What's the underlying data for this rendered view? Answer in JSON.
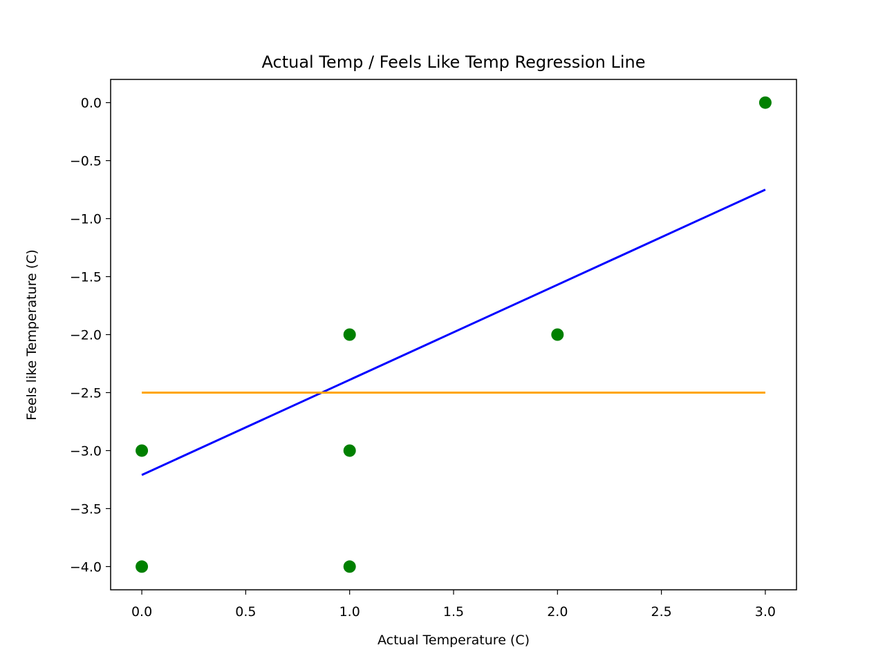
{
  "chart_data": {
    "type": "scatter",
    "title": "Actual Temp / Feels Like Temp Regression Line",
    "xlabel": "Actual Temperature (C)",
    "ylabel": "Feels like Temperature (C)",
    "xlim": [
      -0.15,
      3.15
    ],
    "ylim": [
      -4.2,
      0.2
    ],
    "xticks": [
      0.0,
      0.5,
      1.0,
      1.5,
      2.0,
      2.5,
      3.0
    ],
    "xtick_labels": [
      "0.0",
      "0.5",
      "1.0",
      "1.5",
      "2.0",
      "2.5",
      "3.0"
    ],
    "yticks": [
      0.0,
      -0.5,
      -1.0,
      -1.5,
      -2.0,
      -2.5,
      -3.0,
      -3.5,
      -4.0
    ],
    "ytick_labels": [
      "0.0",
      "−0.5",
      "−1.0",
      "−1.5",
      "−2.0",
      "−2.5",
      "−3.0",
      "−3.5",
      "−4.0"
    ],
    "grid": false,
    "points": {
      "color": "#008000",
      "x": [
        0,
        0,
        1,
        1,
        1,
        2,
        3
      ],
      "y": [
        -3,
        -4,
        -2,
        -3,
        -4,
        -2,
        0
      ]
    },
    "lines": [
      {
        "color": "#0000ff",
        "x": [
          0,
          3
        ],
        "y": [
          -3.21,
          -0.75
        ]
      },
      {
        "color": "#ffa500",
        "x": [
          0,
          3
        ],
        "y": [
          -2.5,
          -2.5
        ]
      }
    ]
  }
}
